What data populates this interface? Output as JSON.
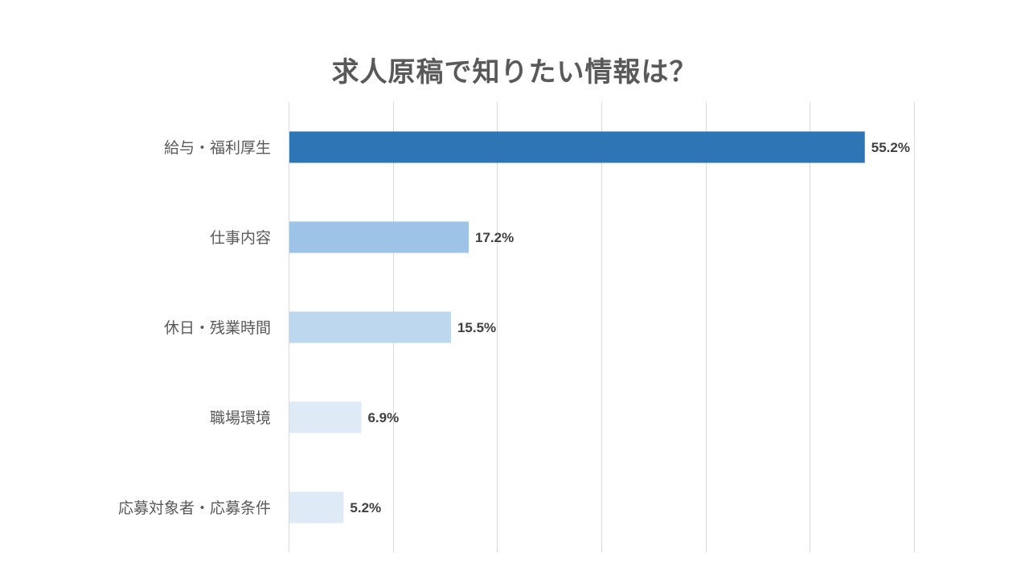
{
  "chart_data": {
    "type": "bar",
    "orientation": "horizontal",
    "title": "求人原稿で知りたい情報は？",
    "xlabel": "",
    "ylabel": "",
    "xlim": [
      0,
      60
    ],
    "grid": true,
    "legend": "none",
    "categories": [
      "給与・福利厚生",
      "仕事内容",
      "休日・残業時間",
      "職場環境",
      "応募対象者・応募条件"
    ],
    "values": [
      55.2,
      17.2,
      15.5,
      6.9,
      5.2
    ],
    "data_labels": [
      "55.2%",
      "17.2%",
      "15.5%",
      "6.9%",
      "5.2%"
    ],
    "bar_colors": [
      "#2E75B6",
      "#9DC3E6",
      "#BDD7EE",
      "#DEEBF7",
      "#DEEBF7"
    ]
  }
}
